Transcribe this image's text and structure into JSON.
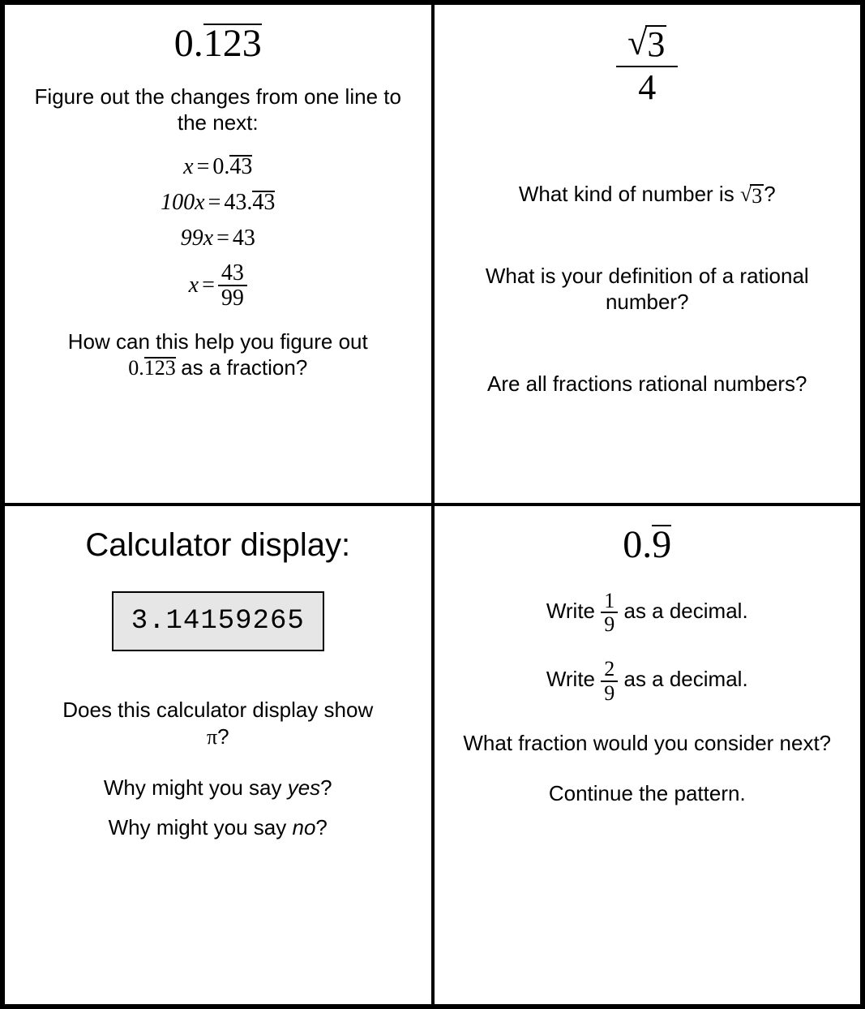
{
  "card1": {
    "title_head": "0.",
    "title_rep": "123",
    "intro": "Figure out the changes from one line to the next:",
    "eq1_lhs": "x",
    "eq1_rhs_head": "0.",
    "eq1_rhs_rep": "43",
    "eq2_lhs": "100x",
    "eq2_rhs_head": "43.",
    "eq2_rhs_rep": "43",
    "eq3_lhs": "99x",
    "eq3_rhs": "43",
    "eq4_lhs": "x",
    "eq4_num": "43",
    "eq4_den": "99",
    "outro_a": "How can this help you figure out",
    "outro_b_head": "0.",
    "outro_b_rep": "123",
    "outro_c": " as a fraction?"
  },
  "card2": {
    "title_num_rad": "3",
    "title_den": "4",
    "q1_a": "What kind of number is ",
    "q1_rad": "3",
    "q1_b": "?",
    "q2": "What is your definition of a rational number?",
    "q3": "Are all fractions rational numbers?"
  },
  "card3": {
    "title": "Calculator display:",
    "display": "3.14159265",
    "q1_a": "Does this calculator display show ",
    "q1_pi": "π",
    "q1_b": "?",
    "q2_a": "Why might you say ",
    "q2_yes": "yes",
    "q2_b": "?",
    "q3_a": "Why might you say ",
    "q3_no": "no",
    "q3_b": "?"
  },
  "card4": {
    "title_head": "0.",
    "title_rep": "9",
    "q1_a": "Write ",
    "q1_num": "1",
    "q1_den": "9",
    "q1_b": " as a decimal.",
    "q2_a": "Write ",
    "q2_num": "2",
    "q2_den": "9",
    "q2_b": " as a decimal.",
    "q3": "What fraction would you consider next?",
    "q4": "Continue the pattern."
  }
}
